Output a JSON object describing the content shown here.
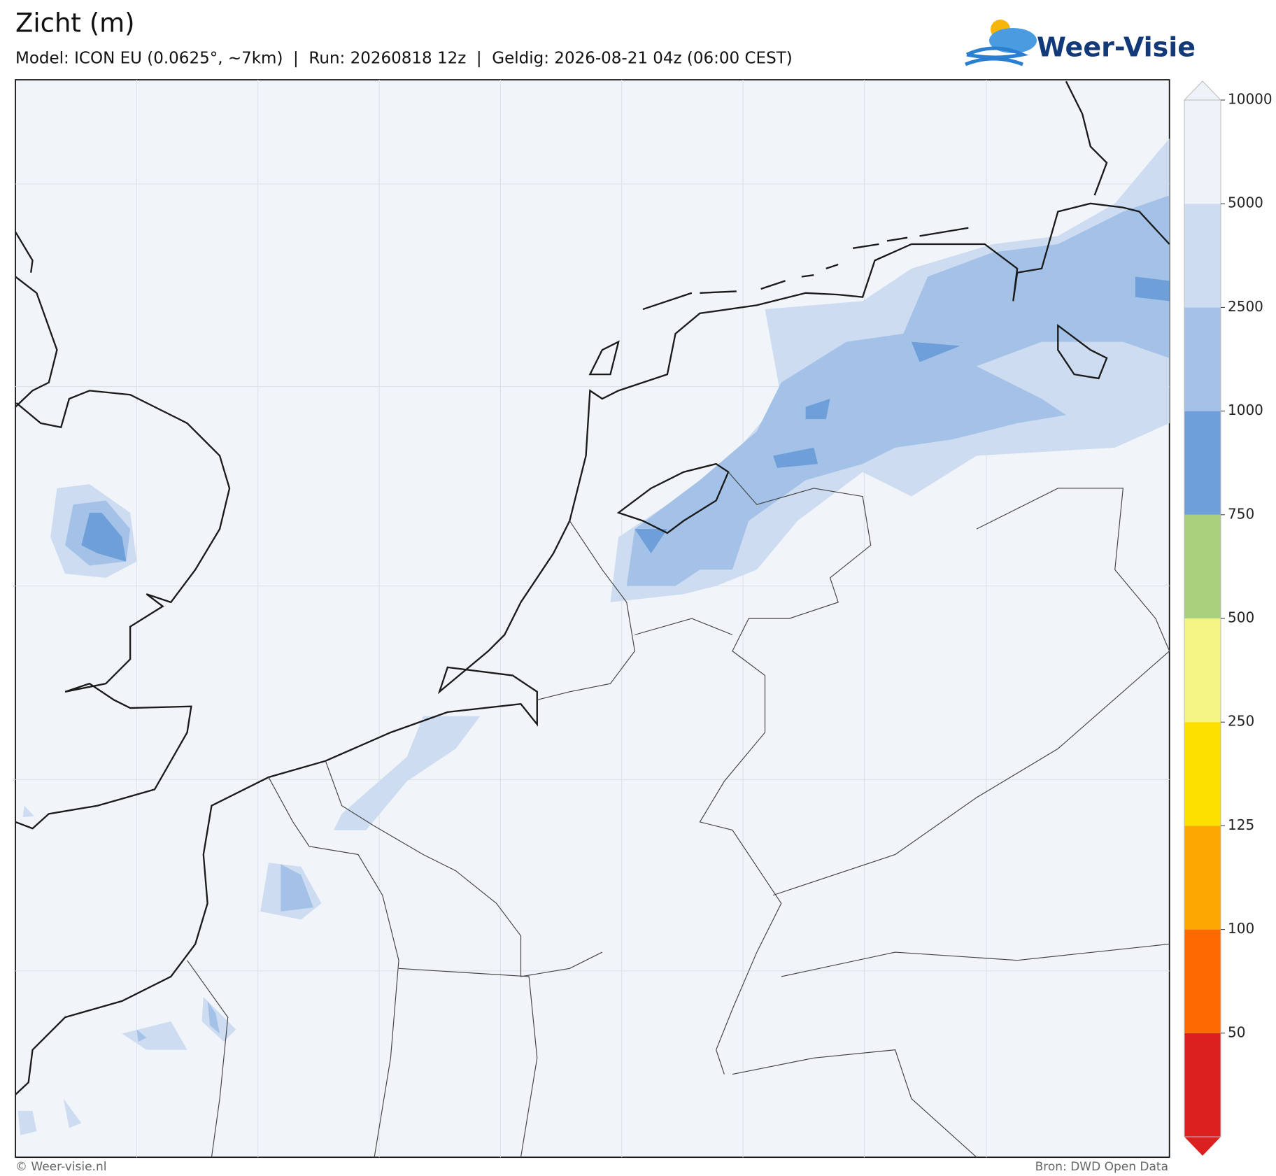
{
  "header": {
    "title": "Zicht (m)",
    "subtitle": "Model: ICON EU (0.0625°, ~7km)  |  Run: 20260818 12z  |  Geldig: 2026-08-21 04z (06:00 CEST)",
    "logo": "Weer-Visie"
  },
  "colorbar": {
    "ticks": [
      50,
      100,
      125,
      250,
      500,
      750,
      1000,
      2500,
      5000,
      10000
    ],
    "colors": [
      "#dc2020",
      "#fc6a00",
      "#fca800",
      "#fde000",
      "#f4f484",
      "#a8d07c",
      "#6f9fd8",
      "#a4c2e8",
      "#cddcf0",
      "#eef3f9"
    ]
  },
  "footer": {
    "left": "© Weer-visie.nl",
    "right": "Bron: DWD Open Data"
  }
}
